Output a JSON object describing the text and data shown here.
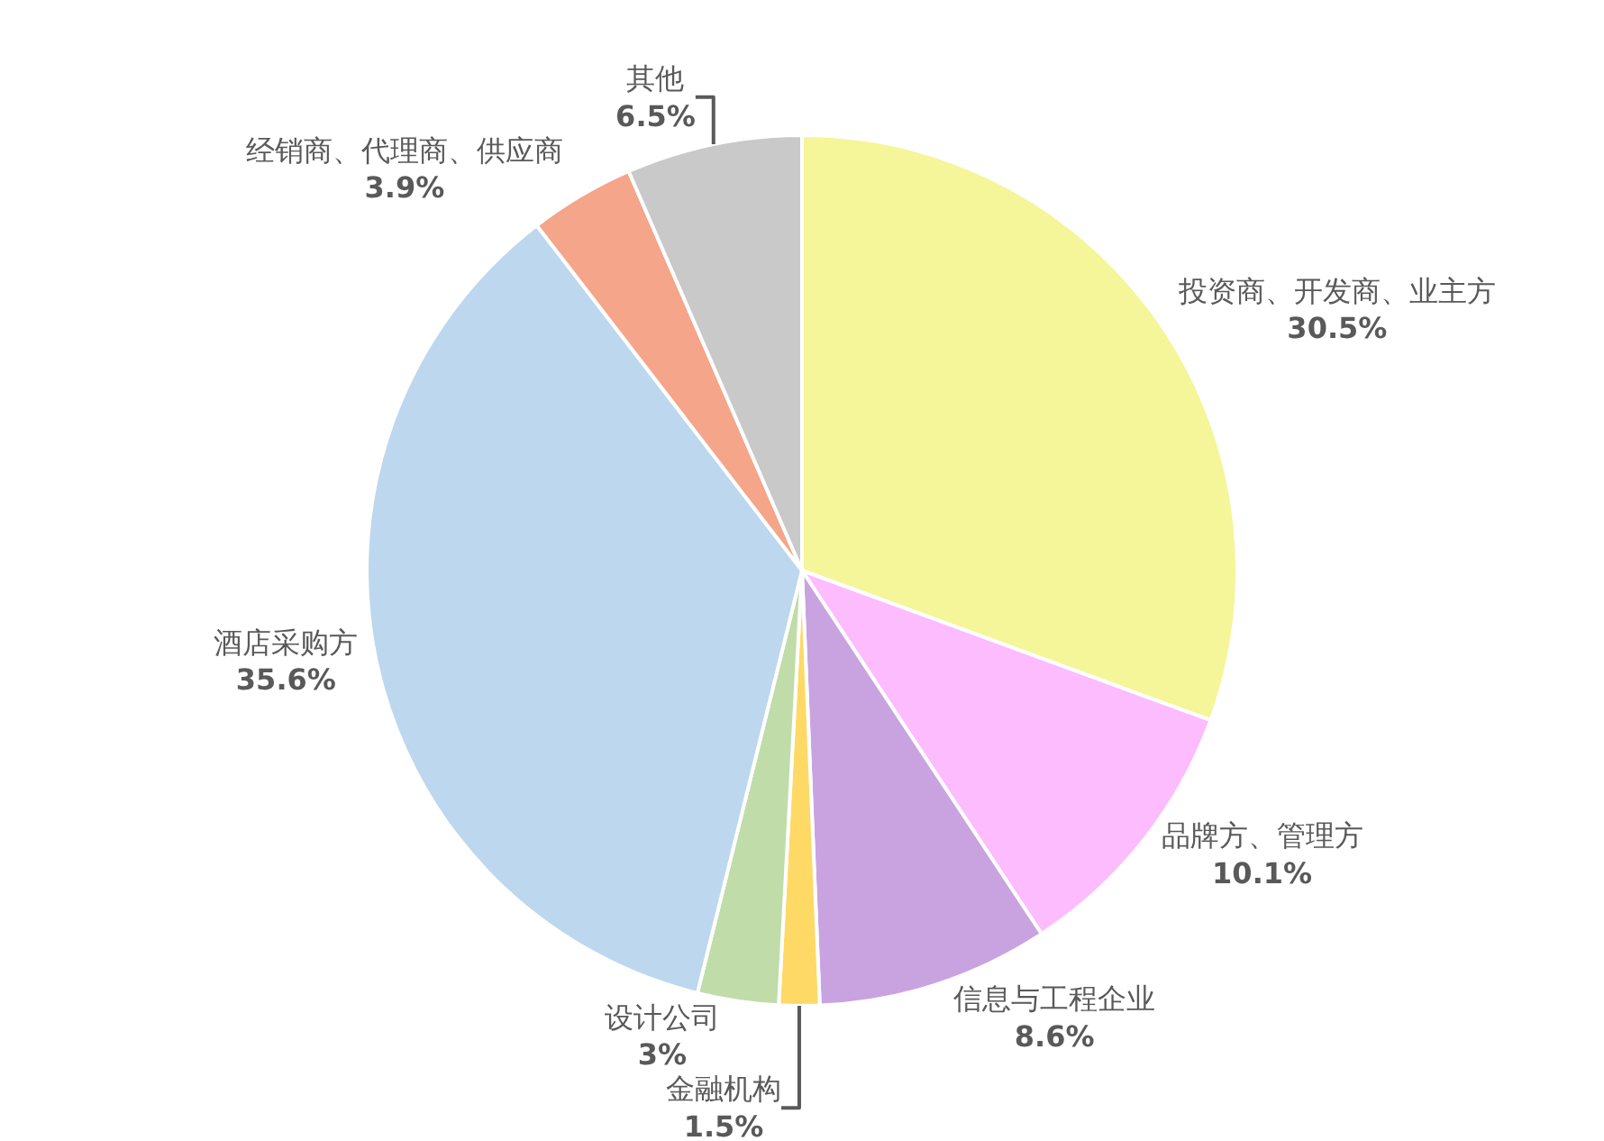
{
  "chart_data": {
    "type": "pie",
    "categories": [
      "投资商、开发商、业主方",
      "品牌方、管理方",
      "信息与工程企业",
      "金融机构",
      "设计公司",
      "酒店采购方",
      "经销商、代理商、供应商",
      "其他"
    ],
    "values": [
      30.5,
      10.1,
      8.6,
      1.5,
      3,
      35.6,
      3.9,
      6.5
    ],
    "value_labels": [
      "30.5%",
      "10.1%",
      "8.6%",
      "1.5%",
      "3%",
      "35.6%",
      "3.9%",
      "6.5%"
    ],
    "colors": [
      "#f5f59a",
      "#fdbcfd",
      "#c9a3e0",
      "#ffd966",
      "#c0dca8",
      "#bdd7ee",
      "#f4a58a",
      "#c9c9c9"
    ],
    "legend": false
  }
}
